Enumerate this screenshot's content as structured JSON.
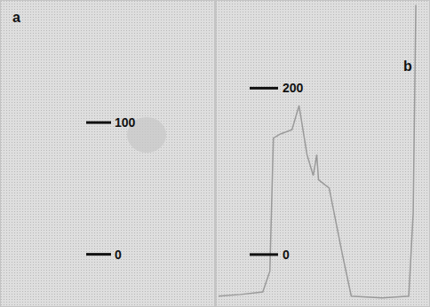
{
  "chart_data": [
    {
      "type": "image",
      "title": "a",
      "ylim": [
        -40,
        193
      ],
      "yticks": [
        0,
        100
      ],
      "tick_labels": "y"
    },
    {
      "type": "line",
      "title": "b",
      "x": [
        3,
        28,
        53,
        61,
        65,
        73,
        86,
        94,
        103,
        110,
        114,
        116,
        128,
        143,
        153,
        188,
        218,
        223,
        226
      ],
      "values": [
        -50,
        -48,
        -45,
        -20,
        140,
        145,
        150,
        179,
        120,
        95,
        120,
        90,
        80,
        0,
        -50,
        -52,
        -50,
        50,
        300
      ],
      "color": "#9a9a9a",
      "xlim": [
        0,
        242
      ],
      "ylim": [
        -62,
        306
      ],
      "xticks": [
        23,
        83,
        148,
        213
      ],
      "yticks": [
        0,
        200
      ],
      "grid": true,
      "tick_labels": "y"
    }
  ]
}
